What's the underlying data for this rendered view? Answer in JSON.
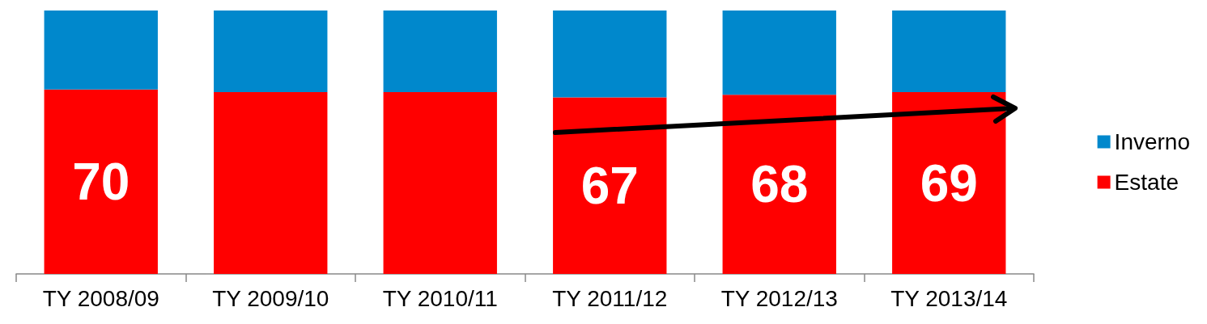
{
  "chart_data": {
    "type": "bar",
    "stacked": true,
    "ylim": [
      0,
      100
    ],
    "categories": [
      "TY 2008/09",
      "TY 2009/10",
      "TY 2010/11",
      "TY 2011/12",
      "TY 2012/13",
      "TY 2013/14"
    ],
    "series": [
      {
        "name": "Estate",
        "color": "#ff0000",
        "values": [
          70,
          69,
          69,
          67,
          68,
          69
        ],
        "value_labels": [
          "70",
          null,
          null,
          "67",
          "68",
          "69"
        ]
      },
      {
        "name": "Inverno",
        "color": "#0088cc",
        "values": [
          30,
          31,
          31,
          33,
          32,
          31
        ]
      }
    ],
    "legend": "right"
  }
}
